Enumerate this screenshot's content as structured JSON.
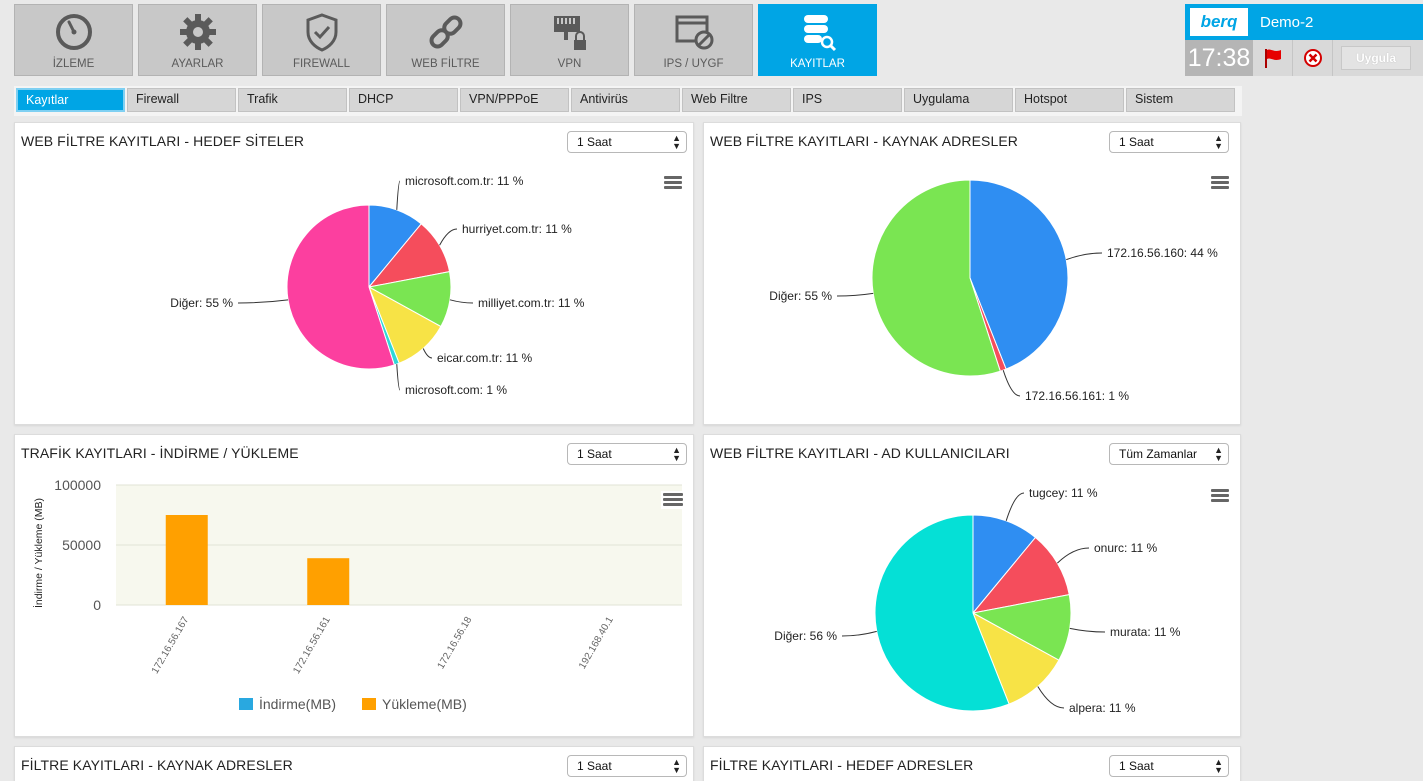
{
  "nav": {
    "items": [
      {
        "label": "İZLEME",
        "icon": "gauge-icon"
      },
      {
        "label": "AYARLAR",
        "icon": "gear-icon"
      },
      {
        "label": "FIREWALL",
        "icon": "shield-icon"
      },
      {
        "label": "WEB FİLTRE",
        "icon": "link-icon"
      },
      {
        "label": "VPN",
        "icon": "vpn-lock-icon"
      },
      {
        "label": "IPS / UYGF",
        "icon": "window-block-icon"
      },
      {
        "label": "KAYITLAR",
        "icon": "database-search-icon",
        "active": true
      }
    ]
  },
  "status": {
    "logo_text": "berq",
    "device_name": "Demo-2",
    "time": "17:38",
    "apply_label": "Uygula",
    "accent_color": "#00a5e5"
  },
  "tabs": [
    {
      "label": "Kayıtlar",
      "active": true
    },
    {
      "label": "Firewall"
    },
    {
      "label": "Trafik"
    },
    {
      "label": "DHCP"
    },
    {
      "label": "VPN/PPPoE"
    },
    {
      "label": "Antivirüs"
    },
    {
      "label": "Web Filtre"
    },
    {
      "label": "IPS"
    },
    {
      "label": "Uygulama"
    },
    {
      "label": "Hotspot"
    },
    {
      "label": "Sistem"
    }
  ],
  "panels": {
    "p1": {
      "title": "WEB FİLTRE KAYITLARI - HEDEF SİTELER",
      "select": "1 Saat"
    },
    "p2": {
      "title": "WEB FİLTRE KAYITLARI - KAYNAK ADRESLER",
      "select": "1 Saat"
    },
    "p3": {
      "title": "TRAFİK KAYITLARI - İNDİRME / YÜKLEME",
      "select": "1 Saat"
    },
    "p4": {
      "title": "WEB FİLTRE KAYITLARI - AD KULLANICILARI",
      "select": "Tüm Zamanlar"
    },
    "p5": {
      "title": "FİLTRE KAYITLARI - KAYNAK ADRESLER",
      "select": "1 Saat"
    },
    "p6": {
      "title": "FİLTRE KAYITLARI - HEDEF ADRESLER",
      "select": "1 Saat"
    }
  },
  "chart_data": [
    {
      "type": "pie",
      "slices": [
        {
          "label": "microsoft.com.tr: 11 %",
          "value": 11,
          "color": "#2f8ef2"
        },
        {
          "label": "hurriyet.com.tr: 11 %",
          "value": 11,
          "color": "#f54d5c"
        },
        {
          "label": "milliyet.com.tr: 11 %",
          "value": 11,
          "color": "#7ae552"
        },
        {
          "label": "eicar.com.tr: 11 %",
          "value": 11,
          "color": "#f7e346"
        },
        {
          "label": "microsoft.com: 1 %",
          "value": 1,
          "color": "#2fd7d7"
        },
        {
          "label": "Diğer: 55 %",
          "value": 55,
          "color": "#fc3f9f"
        }
      ]
    },
    {
      "type": "pie",
      "slices": [
        {
          "label": "172.16.56.160: 44 %",
          "value": 44,
          "color": "#2f8ef2"
        },
        {
          "label": "172.16.56.161: 1 %",
          "value": 1,
          "color": "#f54d5c"
        },
        {
          "label": "Diğer: 55 %",
          "value": 55,
          "color": "#7ae552"
        }
      ]
    },
    {
      "type": "bar",
      "categories": [
        "172.16.56.167",
        "172.16.56.161",
        "172.16.56.18",
        "192.168.40.1"
      ],
      "series": [
        {
          "name": "İndirme(MB)",
          "values": [
            0,
            0,
            0,
            0
          ],
          "color": "#29a8e0"
        },
        {
          "name": "Yükleme(MB)",
          "values": [
            75000,
            39000,
            0,
            0
          ],
          "color": "#ffa000"
        }
      ],
      "ylabel": "İndirme / Yükleme (MB)",
      "yticks": [
        "100000",
        "50000",
        "0"
      ],
      "ylim": [
        0,
        100000
      ],
      "legend": "bottom"
    },
    {
      "type": "pie",
      "slices": [
        {
          "label": "tugcey: 11 %",
          "value": 11,
          "color": "#2f8ef2"
        },
        {
          "label": "onurc: 11 %",
          "value": 11,
          "color": "#f54d5c"
        },
        {
          "label": "murata: 11 %",
          "value": 11,
          "color": "#7ae552"
        },
        {
          "label": "alpera: 11 %",
          "value": 11,
          "color": "#f7e346"
        },
        {
          "label": "Diğer: 56 %",
          "value": 56,
          "color": "#05e0d6"
        }
      ]
    }
  ]
}
